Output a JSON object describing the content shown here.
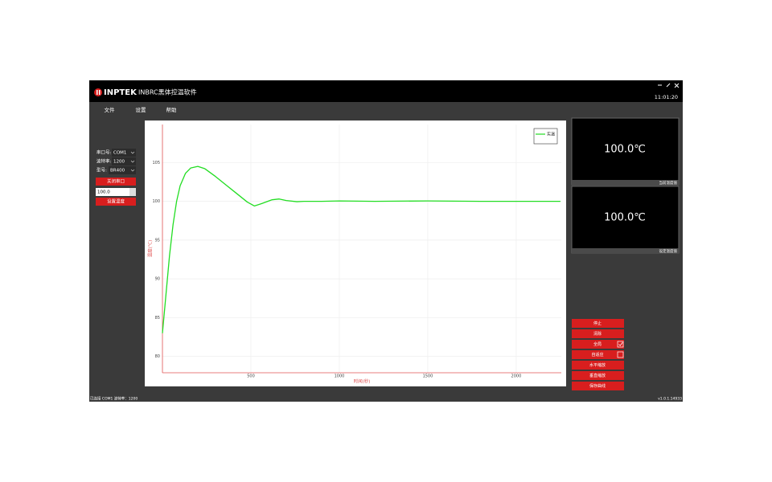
{
  "app": {
    "logo": "INPTEK",
    "title": "INBRC黑体控温软件",
    "time": "11:01:20",
    "menu": [
      "文件",
      "设置",
      "帮助"
    ]
  },
  "settings": {
    "port_label": "串口号:",
    "port": "COM1",
    "baud_label": "波特率:",
    "baud": "1200",
    "model_label": "型号:",
    "model": "BR400",
    "close_button": "关闭串口",
    "setpoint": "100.0",
    "set_button": "设置温度"
  },
  "displays": [
    {
      "value": "100.0℃",
      "label": "当前温度值"
    },
    {
      "value": "100.0℃",
      "label": "设定温度值"
    }
  ],
  "controls": [
    {
      "label": "停止"
    },
    {
      "label": "清除"
    },
    {
      "label": "全局",
      "checked": true
    },
    {
      "label": "自适应",
      "checked": false
    },
    {
      "label": "水平缩放"
    },
    {
      "label": "垂直缩放"
    },
    {
      "label": "保存曲线"
    }
  ],
  "status": {
    "left": "已连接 COM1 波特率：1200",
    "version": "v1.0.1.14933"
  },
  "chart_data": {
    "type": "line",
    "xlabel": "时间(秒)",
    "ylabel": "温度(℃)",
    "x": [
      0,
      20,
      40,
      60,
      80,
      100,
      130,
      160,
      200,
      240,
      300,
      360,
      420,
      480,
      520,
      560,
      620,
      660,
      700,
      760,
      800,
      900,
      1000,
      1200,
      1500,
      1800,
      2000,
      2250
    ],
    "series": [
      {
        "name": "实温",
        "color": "#22dd22",
        "values": [
          83,
          88,
          93,
          97,
          100,
          102,
          103.6,
          104.3,
          104.5,
          104.2,
          103.2,
          102.1,
          101,
          99.9,
          99.4,
          99.7,
          100.2,
          100.3,
          100.1,
          99.95,
          100,
          100,
          100.05,
          100,
          100.05,
          100,
          100,
          100
        ]
      }
    ],
    "xlim": [
      0,
      2255
    ],
    "ylim": [
      77.9,
      109.9
    ],
    "xticks": [
      500,
      1000,
      1500,
      2000
    ],
    "yticks": [
      80,
      85,
      90,
      95,
      100,
      105
    ],
    "grid": true,
    "legend": "upper right",
    "axis_color": "#e05050"
  }
}
